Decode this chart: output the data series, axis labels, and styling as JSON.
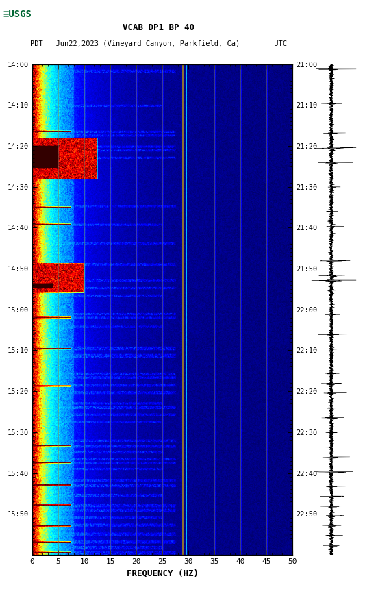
{
  "title_line1": "VCAB DP1 BP 40",
  "title_line2": "PDT   Jun22,2023 (Vineyard Canyon, Parkfield, Ca)        UTC",
  "left_yticks": [
    "14:00",
    "14:10",
    "14:20",
    "14:30",
    "14:40",
    "14:50",
    "15:00",
    "15:10",
    "15:20",
    "15:30",
    "15:40",
    "15:50"
  ],
  "right_yticks": [
    "21:00",
    "21:10",
    "21:20",
    "21:30",
    "21:40",
    "21:50",
    "22:00",
    "22:10",
    "22:20",
    "22:30",
    "22:40",
    "22:50"
  ],
  "xticks": [
    0,
    5,
    10,
    15,
    20,
    25,
    30,
    35,
    40,
    45,
    50
  ],
  "xlabel": "FREQUENCY (HZ)",
  "freq_max": 50,
  "n_time": 660,
  "n_freq": 500,
  "bg_color": "#ffffff",
  "logo_color": "#006633",
  "vline_color_main": "#c8a000",
  "vline_color_minor": "#707060",
  "seed": 42
}
